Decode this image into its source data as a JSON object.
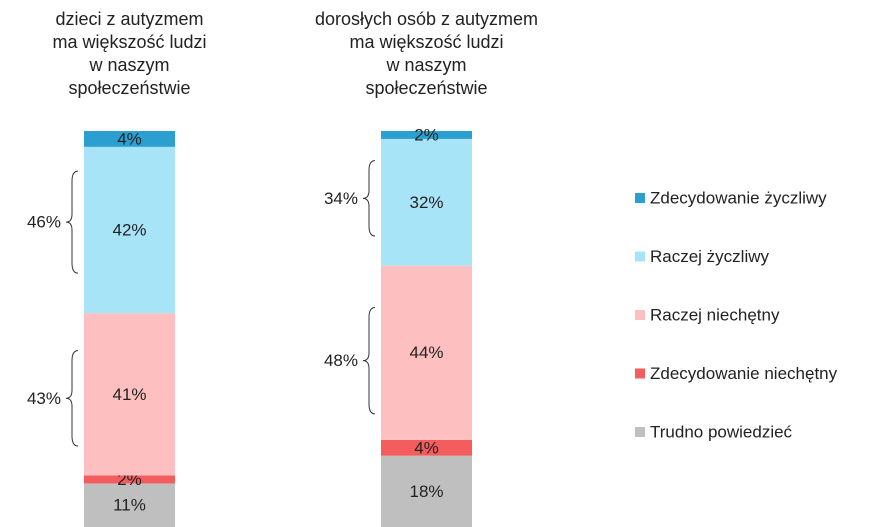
{
  "chart_data": {
    "type": "stacked_bar",
    "categories": [
      "dzieci z autyzmem\nma większość ludzi\nw naszym\nspołeczeństwie",
      "dorosłych osób z autyzmem\nma większość  ludzi\nw naszym\nspołeczeństwie"
    ],
    "series": [
      {
        "name": "Zdecydowanie życzliwy",
        "color": "#2a9fd0",
        "values": [
          4,
          2
        ],
        "value_labels": [
          "4%",
          "2%"
        ]
      },
      {
        "name": "Raczej życzliwy",
        "color": "#a8e4f8",
        "values": [
          42,
          32
        ],
        "value_labels": [
          "42%",
          "32%"
        ]
      },
      {
        "name": "Raczej niechętny",
        "color": "#fdbfbf",
        "values": [
          41,
          44
        ],
        "value_labels": [
          "41%",
          "44%"
        ]
      },
      {
        "name": "Zdecydowanie niechętny",
        "color": "#f45d5d",
        "values": [
          2,
          4
        ],
        "value_labels": [
          "2%",
          "4%"
        ]
      },
      {
        "name": "Trudno powiedzieć",
        "color": "#bfbfbf",
        "values": [
          11,
          18
        ],
        "value_labels": [
          "11%",
          "18%"
        ]
      }
    ],
    "annotations": [
      [
        "46%",
        "43%"
      ],
      [
        "34%",
        "48%"
      ]
    ],
    "ylim": [
      0,
      100
    ]
  }
}
